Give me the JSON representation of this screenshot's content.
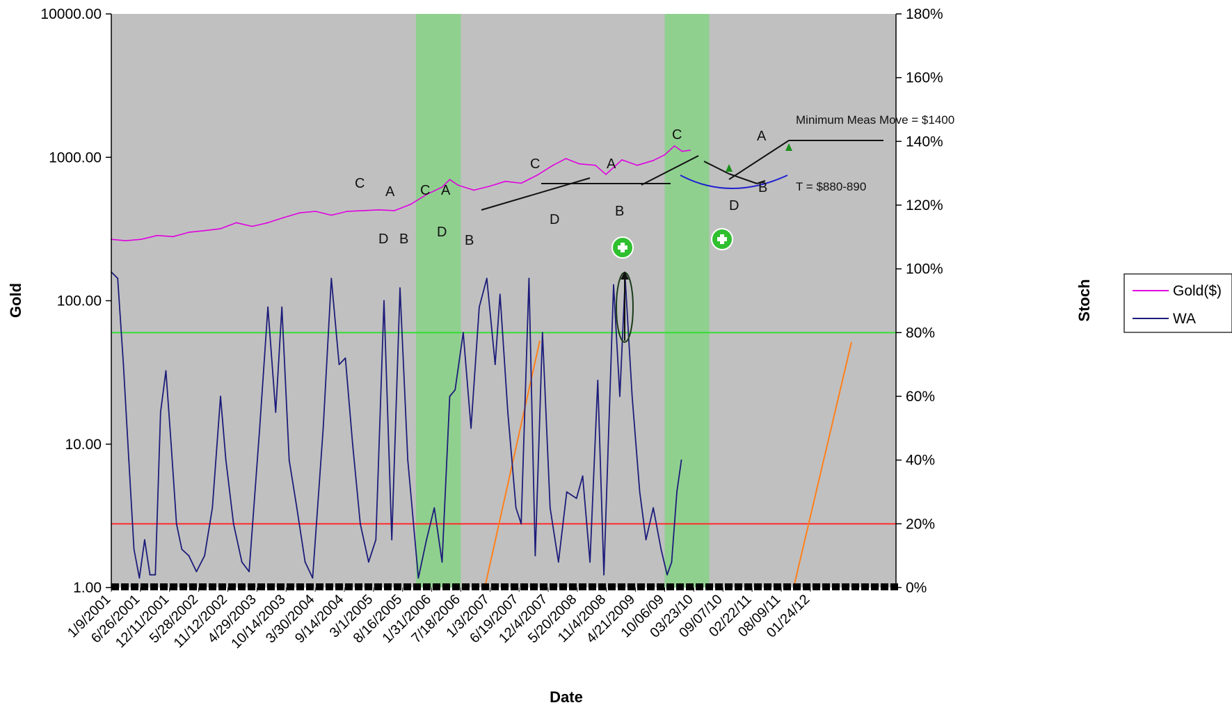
{
  "chart_data": {
    "type": "line",
    "xlabel": "Date",
    "ylabel_left": "Gold",
    "ylabel_right": "Stoch",
    "y_left_scale": "log",
    "y_left_range": [
      1,
      10000
    ],
    "y_left_ticks": [
      "10000.00",
      "1000.00",
      "100.00",
      "10.00",
      "1.00"
    ],
    "y_right_range": [
      0,
      180
    ],
    "y_right_ticks": [
      "180%",
      "160%",
      "140%",
      "120%",
      "100%",
      "80%",
      "60%",
      "40%",
      "20%",
      "0%"
    ],
    "x_range": [
      "2001-01-09",
      "2013-06-01"
    ],
    "x_ticks": [
      {
        "label": "1/9/2001",
        "date": "2001-01-09"
      },
      {
        "label": "6/26/2001",
        "date": "2001-06-26"
      },
      {
        "label": "12/11/2001",
        "date": "2001-12-11"
      },
      {
        "label": "5/28/2002",
        "date": "2002-05-28"
      },
      {
        "label": "11/12/2002",
        "date": "2002-11-12"
      },
      {
        "label": "4/29/2003",
        "date": "2003-04-29"
      },
      {
        "label": "10/14/2003",
        "date": "2003-10-14"
      },
      {
        "label": "3/30/2004",
        "date": "2004-03-30"
      },
      {
        "label": "9/14/2004",
        "date": "2004-09-14"
      },
      {
        "label": "3/1/2005",
        "date": "2005-03-01"
      },
      {
        "label": "8/16/2005",
        "date": "2005-08-16"
      },
      {
        "label": "1/31/2006",
        "date": "2006-01-31"
      },
      {
        "label": "7/18/2006",
        "date": "2006-07-18"
      },
      {
        "label": "1/3/2007",
        "date": "2007-01-03"
      },
      {
        "label": "6/19/2007",
        "date": "2007-06-19"
      },
      {
        "label": "12/4/2007",
        "date": "2007-12-04"
      },
      {
        "label": "5/20/2008",
        "date": "2008-05-20"
      },
      {
        "label": "11/4/2008",
        "date": "2008-11-04"
      },
      {
        "label": "4/21/2009",
        "date": "2009-04-21"
      },
      {
        "label": "10/06/09",
        "date": "2009-10-06"
      },
      {
        "label": "03/23/10",
        "date": "2010-03-23"
      },
      {
        "label": "09/07/10",
        "date": "2010-09-07"
      },
      {
        "label": "02/22/11",
        "date": "2011-02-22"
      },
      {
        "label": "08/09/11",
        "date": "2011-08-09"
      },
      {
        "label": "01/24/12",
        "date": "2012-01-24"
      }
    ],
    "grid": false,
    "legend_position": "right",
    "series": [
      {
        "name": "Gold($)",
        "axis": "left",
        "color": "#e000e0",
        "points": [
          [
            "2001-01-09",
            268
          ],
          [
            "2001-04-01",
            262
          ],
          [
            "2001-07-01",
            268
          ],
          [
            "2001-10-01",
            285
          ],
          [
            "2002-01-01",
            280
          ],
          [
            "2002-04-01",
            300
          ],
          [
            "2002-07-01",
            308
          ],
          [
            "2002-10-01",
            318
          ],
          [
            "2003-01-01",
            350
          ],
          [
            "2003-04-01",
            330
          ],
          [
            "2003-07-01",
            350
          ],
          [
            "2003-10-01",
            380
          ],
          [
            "2004-01-01",
            410
          ],
          [
            "2004-04-01",
            420
          ],
          [
            "2004-07-01",
            395
          ],
          [
            "2004-10-01",
            420
          ],
          [
            "2005-01-01",
            425
          ],
          [
            "2005-04-01",
            430
          ],
          [
            "2005-07-01",
            425
          ],
          [
            "2005-10-01",
            470
          ],
          [
            "2006-01-01",
            550
          ],
          [
            "2006-04-01",
            620
          ],
          [
            "2006-05-15",
            700
          ],
          [
            "2006-07-01",
            640
          ],
          [
            "2006-10-01",
            590
          ],
          [
            "2007-01-03",
            630
          ],
          [
            "2007-04-01",
            680
          ],
          [
            "2007-07-01",
            660
          ],
          [
            "2007-10-01",
            750
          ],
          [
            "2008-01-01",
            880
          ],
          [
            "2008-03-15",
            980
          ],
          [
            "2008-06-01",
            900
          ],
          [
            "2008-09-01",
            880
          ],
          [
            "2008-11-01",
            760
          ],
          [
            "2009-02-01",
            960
          ],
          [
            "2009-05-01",
            880
          ],
          [
            "2009-08-01",
            950
          ],
          [
            "2009-10-06",
            1040
          ],
          [
            "2009-12-01",
            1200
          ],
          [
            "2010-01-15",
            1100
          ],
          [
            "2010-03-01",
            1120
          ]
        ]
      },
      {
        "name": "WA",
        "axis": "right",
        "color": "#1c1c7a",
        "points": [
          [
            "2001-01-09",
            99
          ],
          [
            "2001-02-15",
            97
          ],
          [
            "2001-03-20",
            70
          ],
          [
            "2001-04-20",
            40
          ],
          [
            "2001-05-20",
            12
          ],
          [
            "2001-06-20",
            3
          ],
          [
            "2001-07-20",
            15
          ],
          [
            "2001-08-20",
            4
          ],
          [
            "2001-09-20",
            4
          ],
          [
            "2001-10-20",
            55
          ],
          [
            "2001-11-20",
            68
          ],
          [
            "2001-12-20",
            45
          ],
          [
            "2002-01-20",
            20
          ],
          [
            "2002-02-20",
            12
          ],
          [
            "2002-04-01",
            10
          ],
          [
            "2002-05-15",
            5
          ],
          [
            "2002-07-01",
            10
          ],
          [
            "2002-08-15",
            25
          ],
          [
            "2002-10-01",
            60
          ],
          [
            "2002-11-01",
            40
          ],
          [
            "2002-12-15",
            20
          ],
          [
            "2003-02-01",
            8
          ],
          [
            "2003-03-15",
            5
          ],
          [
            "2003-05-15",
            50
          ],
          [
            "2003-07-01",
            88
          ],
          [
            "2003-08-15",
            55
          ],
          [
            "2003-09-20",
            88
          ],
          [
            "2003-11-01",
            40
          ],
          [
            "2003-12-15",
            25
          ],
          [
            "2004-02-01",
            8
          ],
          [
            "2004-03-15",
            3
          ],
          [
            "2004-05-15",
            50
          ],
          [
            "2004-07-01",
            97
          ],
          [
            "2004-08-15",
            70
          ],
          [
            "2004-09-20",
            72
          ],
          [
            "2004-11-01",
            45
          ],
          [
            "2004-12-15",
            20
          ],
          [
            "2005-02-01",
            8
          ],
          [
            "2005-03-15",
            15
          ],
          [
            "2005-05-01",
            90
          ],
          [
            "2005-06-15",
            15
          ],
          [
            "2005-08-01",
            94
          ],
          [
            "2005-09-15",
            40
          ],
          [
            "2005-11-15",
            3
          ],
          [
            "2006-01-01",
            15
          ],
          [
            "2006-02-15",
            25
          ],
          [
            "2006-04-01",
            8
          ],
          [
            "2006-05-15",
            60
          ],
          [
            "2006-06-15",
            62
          ],
          [
            "2006-08-01",
            80
          ],
          [
            "2006-09-15",
            50
          ],
          [
            "2006-11-01",
            88
          ],
          [
            "2006-12-15",
            97
          ],
          [
            "2007-02-01",
            70
          ],
          [
            "2007-03-01",
            92
          ],
          [
            "2007-04-15",
            55
          ],
          [
            "2007-06-01",
            25
          ],
          [
            "2007-07-01",
            20
          ],
          [
            "2007-08-15",
            97
          ],
          [
            "2007-09-20",
            10
          ],
          [
            "2007-11-01",
            80
          ],
          [
            "2007-12-15",
            25
          ],
          [
            "2008-02-01",
            8
          ],
          [
            "2008-03-20",
            30
          ],
          [
            "2008-05-15",
            28
          ],
          [
            "2008-06-20",
            35
          ],
          [
            "2008-08-01",
            8
          ],
          [
            "2008-09-15",
            65
          ],
          [
            "2008-10-20",
            4
          ],
          [
            "2008-12-15",
            95
          ],
          [
            "2009-01-20",
            60
          ],
          [
            "2009-02-20",
            97
          ],
          [
            "2009-04-01",
            60
          ],
          [
            "2009-05-15",
            30
          ],
          [
            "2009-06-20",
            15
          ],
          [
            "2009-08-01",
            25
          ],
          [
            "2009-09-15",
            12
          ],
          [
            "2009-10-20",
            4
          ],
          [
            "2009-11-15",
            8
          ],
          [
            "2009-12-15",
            30
          ],
          [
            "2010-01-10",
            40
          ]
        ]
      }
    ],
    "reference_lines": [
      {
        "axis": "right",
        "value": 80,
        "color": "#33dd33"
      },
      {
        "axis": "right",
        "value": 20,
        "color": "#ff2a2a"
      }
    ],
    "shaded_regions": [
      {
        "from": "2005-11-01",
        "to": "2006-07-18",
        "color": "#8fd08f"
      },
      {
        "from": "2009-10-06",
        "to": "2010-06-20",
        "color": "#8fd08f"
      }
    ],
    "annotations": {
      "letters": [
        "C",
        "A",
        "C",
        "A",
        "D",
        "B",
        "D",
        "B",
        "C",
        "D",
        "A",
        "B",
        "C",
        "A",
        "D",
        "B"
      ],
      "measured_move": "Minimum Meas Move = $1400",
      "target": "T = $880-890"
    }
  },
  "legend": {
    "items": [
      {
        "label": "Gold($)",
        "color": "#e000e0"
      },
      {
        "label": "WA",
        "color": "#1c1c7a"
      }
    ]
  }
}
